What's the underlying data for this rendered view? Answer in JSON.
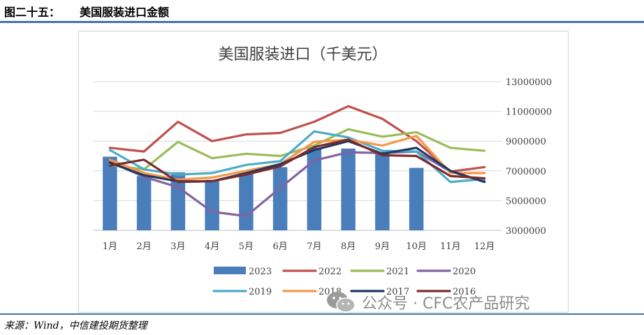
{
  "figure": {
    "number": "图二十五：",
    "caption": "美国服装进口金额"
  },
  "source_note": "来源：Wind，中信建投期货整理",
  "watermark": {
    "icon": "wechat-icon",
    "text": "公众号 · CFC农产品研究"
  },
  "colors": {
    "rule": "#4472a8"
  },
  "chart_data": {
    "type": "bar+line",
    "title": "美国服装进口（千美元）",
    "categories": [
      "1月",
      "2月",
      "3月",
      "4月",
      "5月",
      "6月",
      "7月",
      "8月",
      "9月",
      "10月",
      "11月",
      "12月"
    ],
    "ylim": [
      3000000,
      13000000
    ],
    "yticks": [
      "3000000",
      "5000000",
      "7000000",
      "9000000",
      "11000000",
      "13000000"
    ],
    "ytick_values": [
      3000000,
      5000000,
      7000000,
      9000000,
      11000000,
      13000000
    ],
    "y_axis_side": "right",
    "grid": true,
    "legend_position": "bottom",
    "series": [
      {
        "name": "2023",
        "type": "bar",
        "color": "#4a7ebb",
        "values": [
          7950000,
          6650000,
          6900000,
          6400000,
          6850000,
          7250000,
          8550000,
          8500000,
          8200000,
          7200000,
          null,
          null
        ]
      },
      {
        "name": "2022",
        "type": "line",
        "color": "#c0504d",
        "values": [
          8550000,
          8300000,
          10300000,
          9000000,
          9450000,
          9550000,
          10300000,
          11350000,
          10500000,
          9000000,
          6950000,
          7250000
        ]
      },
      {
        "name": "2021",
        "type": "line",
        "color": "#9bbb59",
        "values": [
          7400000,
          7100000,
          8950000,
          7850000,
          8150000,
          8000000,
          8700000,
          9800000,
          9300000,
          9600000,
          8550000,
          8350000
        ]
      },
      {
        "name": "2020",
        "type": "line",
        "color": "#8064a2",
        "values": [
          7600000,
          6600000,
          5900000,
          4250000,
          3950000,
          5850000,
          7700000,
          8250000,
          8200000,
          8300000,
          6950000,
          6300000
        ]
      },
      {
        "name": "2019",
        "type": "line",
        "color": "#4bacc6",
        "values": [
          8400000,
          7100000,
          6750000,
          6850000,
          7400000,
          7650000,
          9650000,
          9250000,
          8350000,
          8300000,
          6250000,
          6450000
        ]
      },
      {
        "name": "2018",
        "type": "line",
        "color": "#f79646",
        "values": [
          7750000,
          6850000,
          6400000,
          6550000,
          7000000,
          7450000,
          8950000,
          9100000,
          8700000,
          9350000,
          6850000,
          6850000
        ]
      },
      {
        "name": "2017",
        "type": "line",
        "color": "#1f3864",
        "values": [
          7550000,
          6700000,
          6300000,
          6300000,
          6850000,
          7450000,
          8400000,
          9000000,
          8150000,
          8550000,
          7000000,
          6250000
        ]
      },
      {
        "name": "2016",
        "type": "line",
        "color": "#7b2c2c",
        "values": [
          7350000,
          7750000,
          6250000,
          6300000,
          6750000,
          7300000,
          8600000,
          9100000,
          8050000,
          8000000,
          6650000,
          6500000
        ]
      }
    ]
  }
}
